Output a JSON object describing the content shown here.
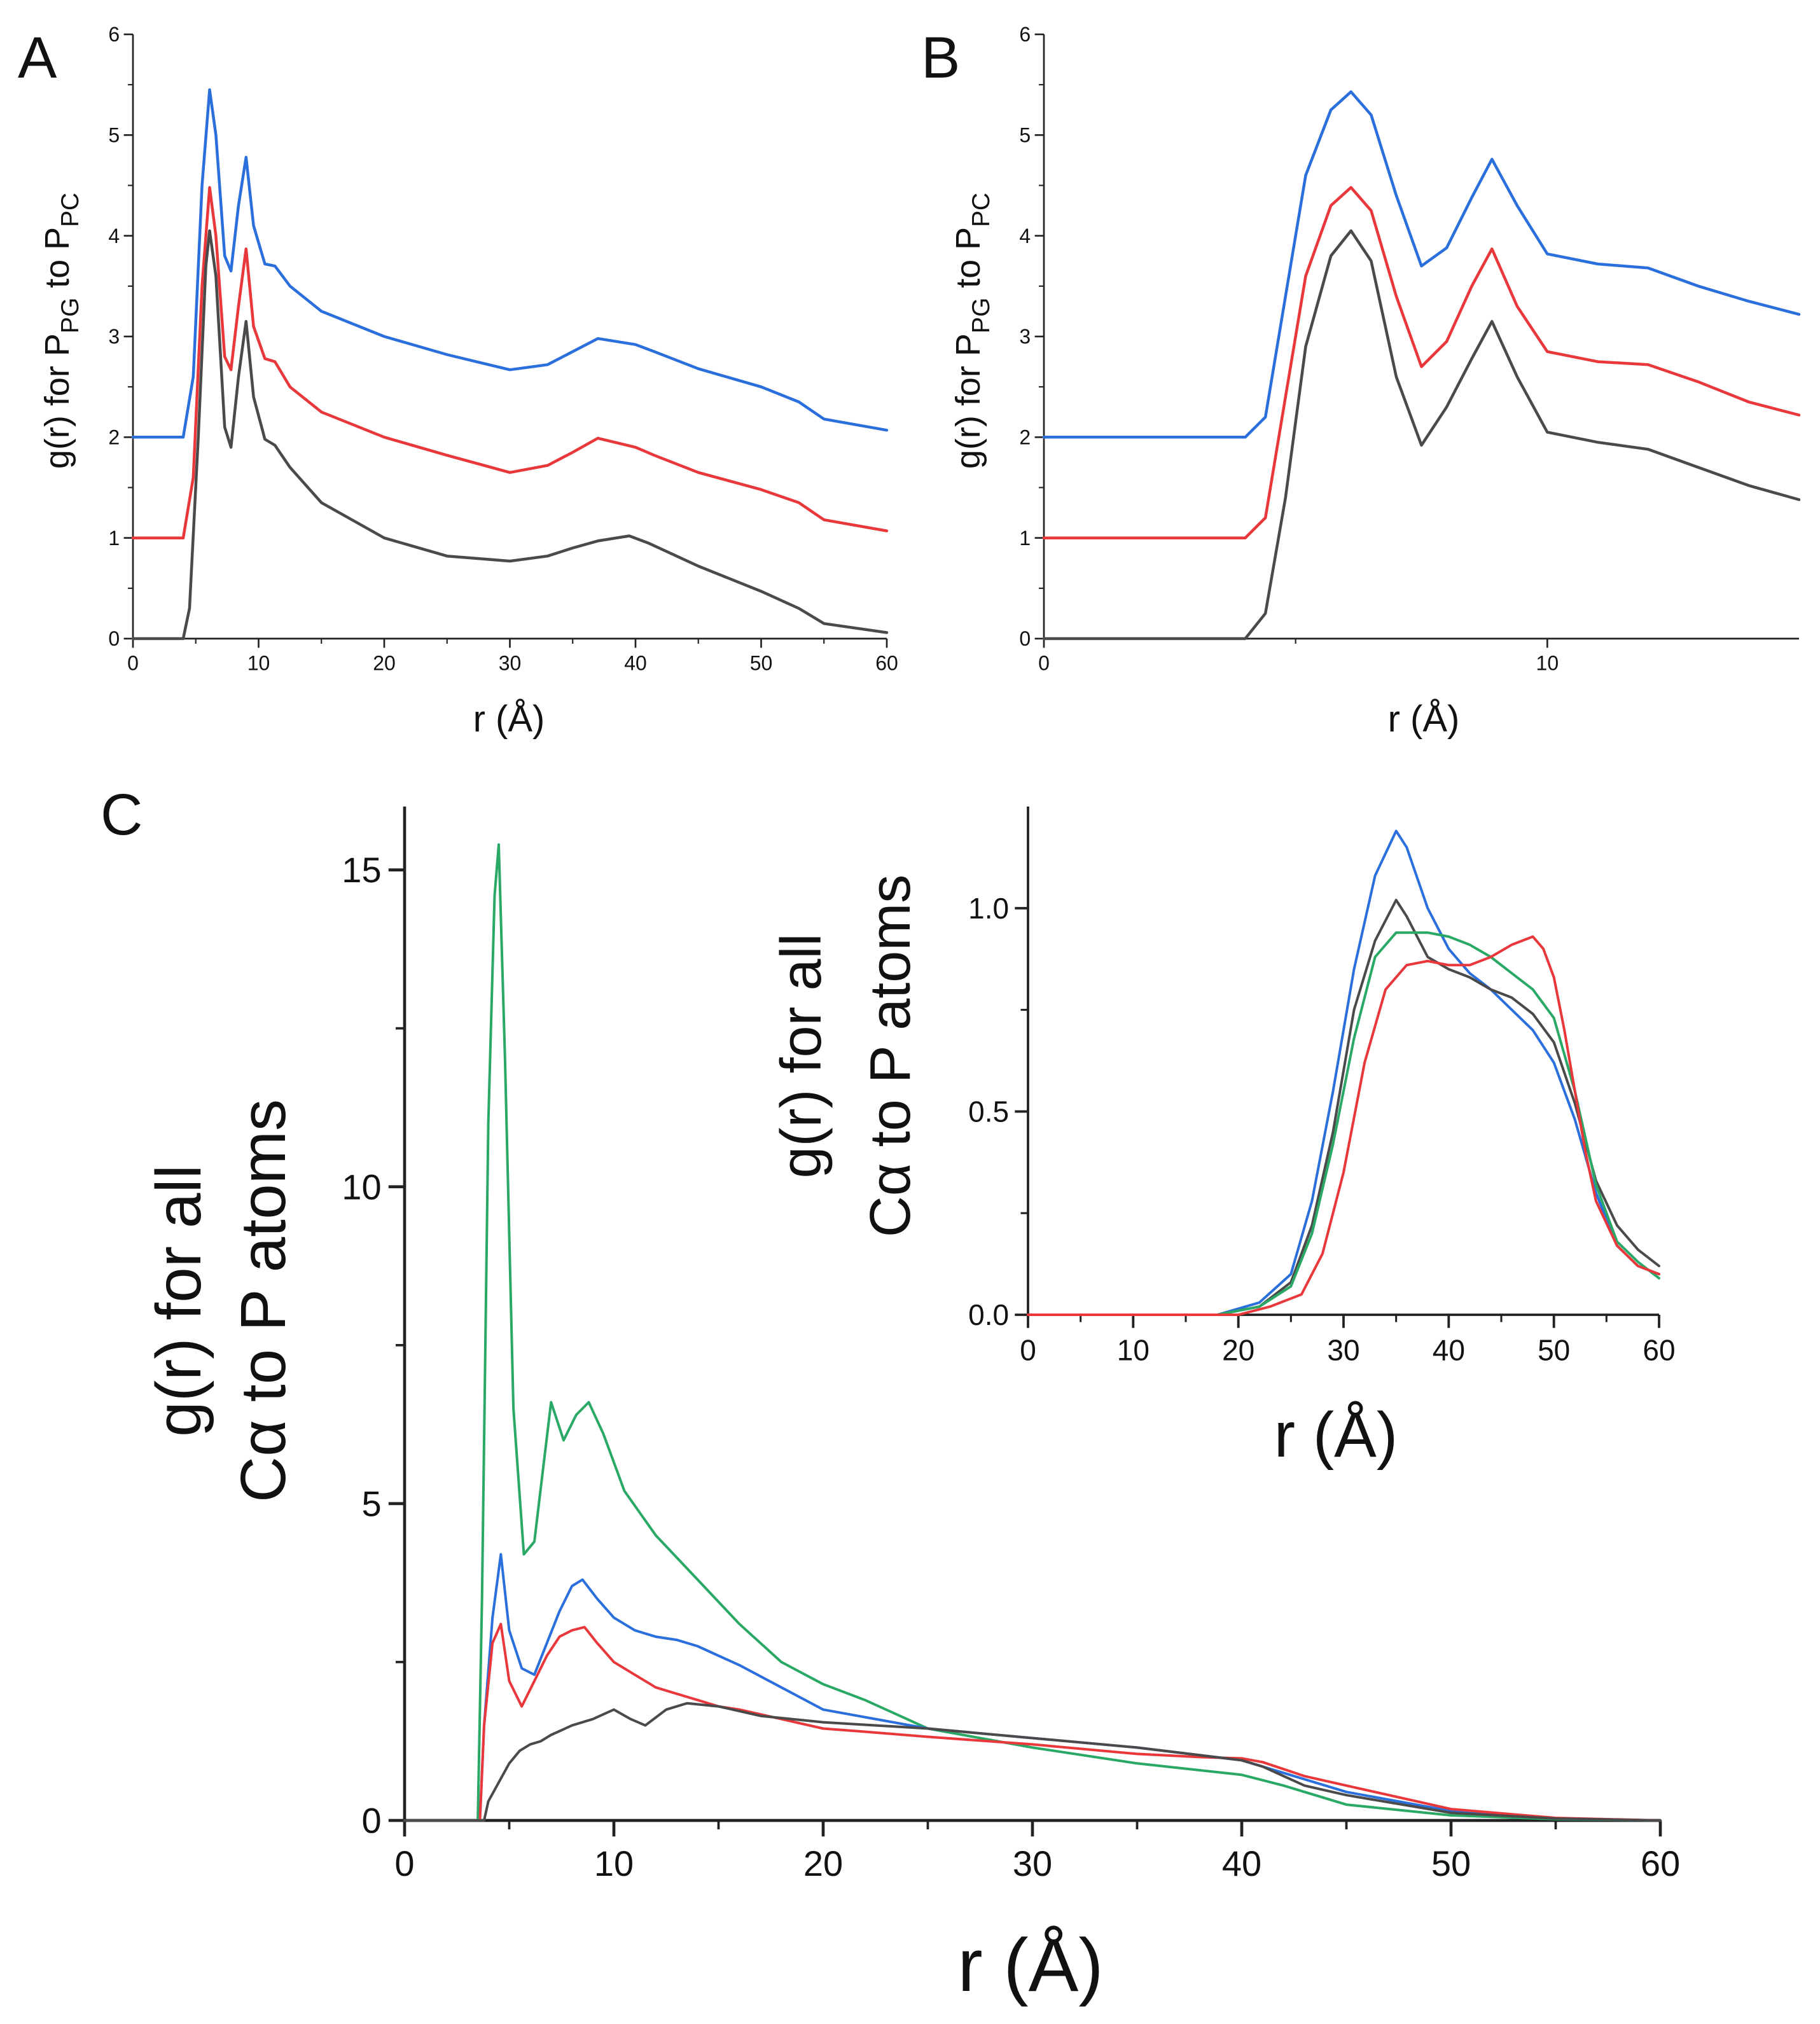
{
  "panel_labels": {
    "a": "A",
    "b": "B",
    "c": "C"
  },
  "axis_text": {
    "a": {
      "ylabel_1": "g(r) for P",
      "ylabel_sub1": "PG",
      "ylabel_2": " to P",
      "ylabel_sub2": "PC",
      "xlabel": "r  (Å)"
    },
    "b": {
      "ylabel_1": "g(r) for P",
      "ylabel_sub1": "PG",
      "ylabel_2": " to P",
      "ylabel_sub2": "PC",
      "xlabel": "r  (Å)"
    },
    "c": {
      "ylabel_line1": "g(r) for all",
      "ylabel_line2": "Cα to P atoms",
      "xlabel": "r  (Å)"
    },
    "inset": {
      "ylabel_line1": "g(r) for all",
      "ylabel_line2": "Cα to P atoms",
      "xlabel": "r  (Å)"
    }
  },
  "colors": {
    "blue": "#2a6fdb",
    "red": "#e8383b",
    "black": "#4a4a4a",
    "green": "#2aa866"
  },
  "chart_data": [
    {
      "id": "a",
      "type": "line",
      "xlim": [
        0,
        60
      ],
      "ylim": [
        0,
        6
      ],
      "xticks": [
        "0",
        "10",
        "20",
        "30",
        "40",
        "50",
        "60"
      ],
      "yticks": [
        "0",
        "1",
        "2",
        "3",
        "4",
        "5",
        "6"
      ],
      "series": [
        {
          "color": "blue",
          "x": [
            0,
            4,
            4.8,
            5.5,
            6.1,
            6.6,
            7.3,
            7.8,
            8.4,
            9.0,
            9.6,
            10.5,
            11.3,
            12.5,
            15,
            20,
            25,
            30,
            33,
            35,
            37,
            40,
            41.5,
            45,
            50,
            53,
            55,
            60
          ],
          "y": [
            2.0,
            2.0,
            2.6,
            4.5,
            5.45,
            5.0,
            3.8,
            3.65,
            4.3,
            4.78,
            4.1,
            3.72,
            3.7,
            3.5,
            3.25,
            3.0,
            2.82,
            2.67,
            2.72,
            2.85,
            2.98,
            2.92,
            2.85,
            2.68,
            2.5,
            2.35,
            2.18,
            2.07
          ]
        },
        {
          "color": "red",
          "x": [
            0,
            4,
            4.8,
            5.5,
            6.1,
            6.6,
            7.3,
            7.8,
            8.4,
            9.0,
            9.6,
            10.5,
            11.3,
            12.5,
            15,
            20,
            25,
            30,
            33,
            35,
            37,
            40,
            41.5,
            45,
            50,
            53,
            55,
            60
          ],
          "y": [
            1.0,
            1.0,
            1.6,
            3.5,
            4.48,
            4.0,
            2.8,
            2.67,
            3.3,
            3.87,
            3.1,
            2.78,
            2.75,
            2.5,
            2.25,
            2.0,
            1.82,
            1.65,
            1.72,
            1.85,
            1.99,
            1.9,
            1.82,
            1.65,
            1.48,
            1.35,
            1.18,
            1.07
          ]
        },
        {
          "color": "black",
          "x": [
            0,
            4,
            4.5,
            5.2,
            5.8,
            6.1,
            6.6,
            7.3,
            7.8,
            8.4,
            9.0,
            9.6,
            10.5,
            11.3,
            12.5,
            15,
            20,
            25,
            30,
            33,
            35,
            37,
            39.5,
            41,
            45,
            50,
            53,
            55,
            60
          ],
          "y": [
            0,
            0,
            0.3,
            2.0,
            3.7,
            4.05,
            3.6,
            2.1,
            1.9,
            2.6,
            3.15,
            2.4,
            1.98,
            1.92,
            1.7,
            1.35,
            1.0,
            0.82,
            0.77,
            0.82,
            0.9,
            0.97,
            1.02,
            0.95,
            0.72,
            0.47,
            0.3,
            0.15,
            0.06
          ]
        }
      ]
    },
    {
      "id": "b",
      "type": "line",
      "xlim": [
        0,
        15
      ],
      "ylim": [
        0,
        6
      ],
      "xticks": [
        "0",
        "10"
      ],
      "yticks": [
        "0",
        "1",
        "2",
        "3",
        "4",
        "5",
        "6"
      ],
      "series": [
        {
          "color": "blue",
          "x": [
            0,
            4.0,
            4.4,
            4.8,
            5.2,
            5.7,
            6.1,
            6.5,
            7.0,
            7.5,
            8.0,
            8.5,
            8.9,
            9.4,
            10,
            11,
            12,
            13,
            14,
            15
          ],
          "y": [
            2.0,
            2.0,
            2.2,
            3.4,
            4.6,
            5.25,
            5.43,
            5.2,
            4.4,
            3.7,
            3.88,
            4.38,
            4.76,
            4.3,
            3.82,
            3.72,
            3.68,
            3.5,
            3.35,
            3.22
          ]
        },
        {
          "color": "red",
          "x": [
            0,
            4.0,
            4.4,
            4.8,
            5.2,
            5.7,
            6.1,
            6.5,
            7.0,
            7.5,
            8.0,
            8.5,
            8.9,
            9.4,
            10,
            11,
            12,
            13,
            14,
            15
          ],
          "y": [
            1.0,
            1.0,
            1.2,
            2.4,
            3.6,
            4.3,
            4.48,
            4.25,
            3.4,
            2.7,
            2.95,
            3.5,
            3.87,
            3.3,
            2.85,
            2.75,
            2.72,
            2.55,
            2.35,
            2.22
          ]
        },
        {
          "color": "black",
          "x": [
            0,
            4.0,
            4.4,
            4.8,
            5.2,
            5.7,
            6.1,
            6.5,
            7.0,
            7.5,
            8.0,
            8.5,
            8.9,
            9.4,
            10,
            11,
            12,
            13,
            14,
            15
          ],
          "y": [
            0,
            0,
            0.25,
            1.4,
            2.9,
            3.8,
            4.05,
            3.75,
            2.6,
            1.92,
            2.3,
            2.78,
            3.15,
            2.6,
            2.05,
            1.95,
            1.88,
            1.7,
            1.52,
            1.38
          ]
        }
      ]
    },
    {
      "id": "c",
      "type": "line",
      "xlim": [
        0,
        60
      ],
      "ylim": [
        0,
        16
      ],
      "xticks": [
        "0",
        "10",
        "20",
        "30",
        "40",
        "50",
        "60"
      ],
      "yticks": [
        "0",
        "5",
        "10",
        "15"
      ],
      "series": [
        {
          "color": "green",
          "x": [
            0,
            3.5,
            3.7,
            4.0,
            4.3,
            4.5,
            4.8,
            5.2,
            5.7,
            6.2,
            6.6,
            7.0,
            7.6,
            8.2,
            8.8,
            9.5,
            10.5,
            12,
            14,
            16,
            18,
            20,
            22,
            25,
            30,
            35,
            40,
            42,
            45,
            50,
            55,
            60
          ],
          "y": [
            0,
            0,
            3.5,
            11.0,
            14.6,
            15.4,
            12.0,
            6.5,
            4.2,
            4.4,
            5.5,
            6.6,
            6.0,
            6.4,
            6.6,
            6.1,
            5.2,
            4.5,
            3.8,
            3.1,
            2.5,
            2.15,
            1.9,
            1.45,
            1.15,
            0.9,
            0.72,
            0.55,
            0.25,
            0.08,
            0.02,
            0
          ]
        },
        {
          "color": "blue",
          "x": [
            0,
            3.6,
            3.8,
            4.2,
            4.6,
            5.0,
            5.6,
            6.2,
            6.8,
            7.4,
            8.0,
            8.5,
            9.2,
            10,
            11,
            12,
            13,
            14,
            15,
            16,
            18,
            20,
            25,
            30,
            35,
            40,
            41,
            45,
            50,
            55,
            60
          ],
          "y": [
            0,
            0,
            1.5,
            3.2,
            4.2,
            3.0,
            2.4,
            2.3,
            2.8,
            3.3,
            3.7,
            3.8,
            3.5,
            3.2,
            3.0,
            2.9,
            2.85,
            2.75,
            2.6,
            2.45,
            2.1,
            1.75,
            1.45,
            1.3,
            1.15,
            0.95,
            0.85,
            0.45,
            0.15,
            0.03,
            0
          ]
        },
        {
          "color": "red",
          "x": [
            0,
            3.6,
            3.8,
            4.2,
            4.6,
            5.0,
            5.6,
            6.2,
            6.8,
            7.4,
            8.0,
            8.6,
            9.2,
            10,
            11,
            12,
            13,
            14,
            15,
            16,
            18,
            20,
            22,
            25,
            30,
            35,
            38,
            40,
            41,
            43,
            45,
            50,
            55,
            60
          ],
          "y": [
            0,
            0,
            1.5,
            2.8,
            3.1,
            2.2,
            1.8,
            2.2,
            2.6,
            2.9,
            3.0,
            3.05,
            2.8,
            2.5,
            2.3,
            2.1,
            2.0,
            1.9,
            1.8,
            1.75,
            1.6,
            1.45,
            1.4,
            1.32,
            1.2,
            1.05,
            1.0,
            0.98,
            0.92,
            0.7,
            0.55,
            0.18,
            0.04,
            0
          ]
        },
        {
          "color": "black",
          "x": [
            0,
            3.8,
            4.0,
            4.5,
            5.0,
            5.5,
            6.0,
            6.5,
            7.0,
            8.0,
            9.0,
            10,
            10.8,
            11.5,
            12.5,
            13.5,
            15,
            17,
            20,
            25,
            30,
            35,
            40,
            41,
            43,
            45,
            50,
            55,
            60
          ],
          "y": [
            0,
            0,
            0.3,
            0.6,
            0.9,
            1.1,
            1.2,
            1.25,
            1.35,
            1.5,
            1.6,
            1.75,
            1.6,
            1.5,
            1.75,
            1.85,
            1.8,
            1.65,
            1.55,
            1.45,
            1.3,
            1.15,
            0.95,
            0.85,
            0.55,
            0.4,
            0.12,
            0.03,
            0
          ]
        }
      ]
    },
    {
      "id": "inset",
      "type": "line",
      "xlim": [
        0,
        60
      ],
      "ylim": [
        0,
        1.25
      ],
      "xticks": [
        "0",
        "10",
        "20",
        "30",
        "40",
        "50",
        "60"
      ],
      "yticks": [
        "0.0",
        "0.5",
        "1.0"
      ],
      "series": [
        {
          "color": "blue",
          "x": [
            0,
            18,
            22,
            25,
            27,
            29,
            31,
            33,
            35,
            36,
            38,
            40,
            42,
            44,
            46,
            48,
            50,
            52,
            54,
            56,
            58,
            60
          ],
          "y": [
            0,
            0,
            0.03,
            0.1,
            0.28,
            0.55,
            0.85,
            1.08,
            1.19,
            1.15,
            1.0,
            0.9,
            0.84,
            0.8,
            0.75,
            0.7,
            0.62,
            0.48,
            0.3,
            0.17,
            0.12,
            0.1
          ]
        },
        {
          "color": "black",
          "x": [
            0,
            18,
            22,
            25,
            27,
            29,
            31,
            33,
            35,
            36,
            38,
            40,
            42,
            44,
            46,
            48,
            50,
            52,
            54,
            56,
            58,
            60
          ],
          "y": [
            0,
            0,
            0.02,
            0.08,
            0.22,
            0.45,
            0.75,
            0.92,
            1.02,
            0.98,
            0.88,
            0.85,
            0.83,
            0.8,
            0.78,
            0.74,
            0.67,
            0.52,
            0.33,
            0.22,
            0.16,
            0.12
          ]
        },
        {
          "color": "green",
          "x": [
            0,
            18,
            22,
            25,
            27,
            29,
            31,
            33,
            35,
            36,
            38,
            40,
            42,
            44,
            46,
            48,
            50,
            52,
            54,
            56,
            58,
            60
          ],
          "y": [
            0,
            0,
            0.02,
            0.07,
            0.2,
            0.42,
            0.68,
            0.88,
            0.94,
            0.94,
            0.94,
            0.93,
            0.91,
            0.88,
            0.84,
            0.8,
            0.73,
            0.55,
            0.32,
            0.18,
            0.13,
            0.09
          ]
        },
        {
          "color": "red",
          "x": [
            0,
            20,
            23,
            26,
            28,
            30,
            32,
            34,
            36,
            38,
            40,
            42,
            44,
            46,
            48,
            49,
            50,
            51,
            52,
            53,
            54,
            56,
            58,
            60
          ],
          "y": [
            0,
            0,
            0.02,
            0.05,
            0.15,
            0.35,
            0.62,
            0.8,
            0.86,
            0.87,
            0.86,
            0.86,
            0.88,
            0.91,
            0.93,
            0.9,
            0.83,
            0.7,
            0.55,
            0.4,
            0.28,
            0.17,
            0.12,
            0.1
          ]
        }
      ]
    }
  ]
}
